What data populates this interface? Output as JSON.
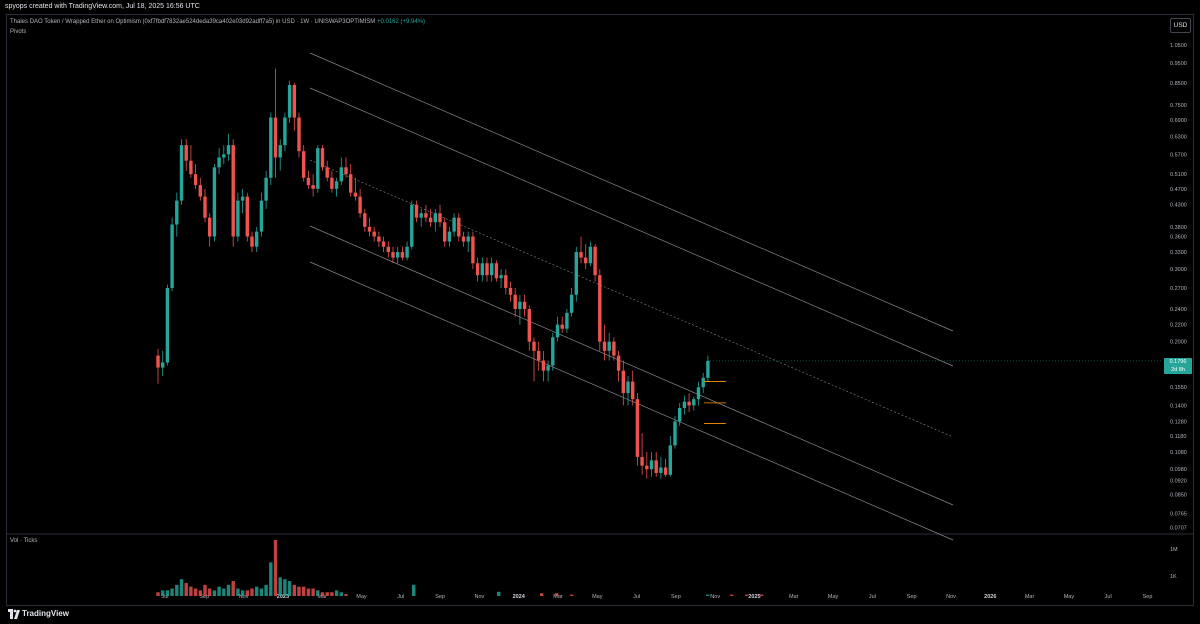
{
  "header": {
    "attribution": "spyops created with TradingView.com, Jul 18, 2025 16:56 UTC"
  },
  "legend": {
    "symbol_text": "Thales DAO Token / Wrapped Ether on Optimism (0xf7fbdf7832ae524deda39ca402e03d92adff7a5) in USD · 1W · UNISWAP3OPTIMISM",
    "change": "+0.0162 (+9.94%)",
    "indicator": "Pivots"
  },
  "currency_button": "USD",
  "volume_pane": {
    "label": "Vol · Ticks",
    "axis_labels": [
      "1M",
      "1K"
    ]
  },
  "footer": {
    "brand": "TradingView"
  },
  "price_tag": {
    "price": "0.1796",
    "countdown": "2d 8h"
  },
  "colors": {
    "up": "#26a69a",
    "down": "#ef5350",
    "channel": "#b2b5be",
    "background": "#000000",
    "pivot": "#ff9800"
  },
  "chart_data": {
    "type": "candlestick",
    "timeframe": "1W",
    "scale": "log",
    "x_axis_labels": [
      "Jul",
      "Sep",
      "Nov",
      "2023",
      "Mar",
      "May",
      "Jul",
      "Sep",
      "Nov",
      "2024",
      "Mar",
      "May",
      "Jul",
      "Sep",
      "Nov",
      "2025",
      "Mar",
      "May",
      "Jul",
      "Sep",
      "Nov",
      "2026",
      "Mar",
      "May",
      "Jul",
      "Sep"
    ],
    "y_axis_labels": [
      "1.0500",
      "0.9500",
      "0.8500",
      "0.7500",
      "0.6900",
      "0.6300",
      "0.5700",
      "0.5100",
      "0.4700",
      "0.4300",
      "0.3800",
      "0.3600",
      "0.3300",
      "0.3000",
      "0.2700",
      "0.2400",
      "0.2200",
      "0.2000",
      "0.1796",
      "0.1550",
      "0.1400",
      "0.1280",
      "0.1180",
      "0.1080",
      "0.0980",
      "0.0920",
      "0.0850",
      "0.0765",
      "0.0707"
    ],
    "y_range": [
      0.069,
      1.08
    ],
    "last_price": 0.1796,
    "candles": [
      {
        "o": 0.185,
        "h": 0.192,
        "l": 0.158,
        "c": 0.173
      },
      {
        "o": 0.173,
        "h": 0.19,
        "l": 0.165,
        "c": 0.178
      },
      {
        "o": 0.178,
        "h": 0.275,
        "l": 0.175,
        "c": 0.27
      },
      {
        "o": 0.27,
        "h": 0.4,
        "l": 0.265,
        "c": 0.385
      },
      {
        "o": 0.385,
        "h": 0.46,
        "l": 0.36,
        "c": 0.44
      },
      {
        "o": 0.44,
        "h": 0.62,
        "l": 0.43,
        "c": 0.6
      },
      {
        "o": 0.6,
        "h": 0.62,
        "l": 0.52,
        "c": 0.55
      },
      {
        "o": 0.55,
        "h": 0.6,
        "l": 0.5,
        "c": 0.51
      },
      {
        "o": 0.51,
        "h": 0.54,
        "l": 0.47,
        "c": 0.48
      },
      {
        "o": 0.48,
        "h": 0.5,
        "l": 0.44,
        "c": 0.45
      },
      {
        "o": 0.45,
        "h": 0.47,
        "l": 0.39,
        "c": 0.4
      },
      {
        "o": 0.4,
        "h": 0.41,
        "l": 0.34,
        "c": 0.36
      },
      {
        "o": 0.36,
        "h": 0.54,
        "l": 0.35,
        "c": 0.53
      },
      {
        "o": 0.53,
        "h": 0.59,
        "l": 0.51,
        "c": 0.56
      },
      {
        "o": 0.56,
        "h": 0.6,
        "l": 0.54,
        "c": 0.57
      },
      {
        "o": 0.57,
        "h": 0.64,
        "l": 0.55,
        "c": 0.6
      },
      {
        "o": 0.6,
        "h": 0.62,
        "l": 0.34,
        "c": 0.36
      },
      {
        "o": 0.36,
        "h": 0.46,
        "l": 0.35,
        "c": 0.44
      },
      {
        "o": 0.44,
        "h": 0.47,
        "l": 0.41,
        "c": 0.45
      },
      {
        "o": 0.45,
        "h": 0.46,
        "l": 0.35,
        "c": 0.36
      },
      {
        "o": 0.36,
        "h": 0.37,
        "l": 0.33,
        "c": 0.34
      },
      {
        "o": 0.34,
        "h": 0.38,
        "l": 0.33,
        "c": 0.37
      },
      {
        "o": 0.37,
        "h": 0.46,
        "l": 0.36,
        "c": 0.44
      },
      {
        "o": 0.44,
        "h": 0.52,
        "l": 0.42,
        "c": 0.5
      },
      {
        "o": 0.5,
        "h": 0.72,
        "l": 0.48,
        "c": 0.7
      },
      {
        "o": 0.7,
        "h": 0.92,
        "l": 0.5,
        "c": 0.56
      },
      {
        "o": 0.56,
        "h": 0.62,
        "l": 0.52,
        "c": 0.6
      },
      {
        "o": 0.6,
        "h": 0.72,
        "l": 0.58,
        "c": 0.7
      },
      {
        "o": 0.7,
        "h": 0.86,
        "l": 0.68,
        "c": 0.84
      },
      {
        "o": 0.84,
        "h": 0.85,
        "l": 0.65,
        "c": 0.7
      },
      {
        "o": 0.7,
        "h": 0.72,
        "l": 0.56,
        "c": 0.58
      },
      {
        "o": 0.58,
        "h": 0.6,
        "l": 0.49,
        "c": 0.5
      },
      {
        "o": 0.5,
        "h": 0.52,
        "l": 0.47,
        "c": 0.48
      },
      {
        "o": 0.48,
        "h": 0.51,
        "l": 0.45,
        "c": 0.47
      },
      {
        "o": 0.47,
        "h": 0.6,
        "l": 0.46,
        "c": 0.59
      },
      {
        "o": 0.59,
        "h": 0.6,
        "l": 0.52,
        "c": 0.53
      },
      {
        "o": 0.53,
        "h": 0.55,
        "l": 0.49,
        "c": 0.5
      },
      {
        "o": 0.5,
        "h": 0.52,
        "l": 0.46,
        "c": 0.47
      },
      {
        "o": 0.47,
        "h": 0.5,
        "l": 0.45,
        "c": 0.49
      },
      {
        "o": 0.49,
        "h": 0.56,
        "l": 0.48,
        "c": 0.53
      },
      {
        "o": 0.53,
        "h": 0.56,
        "l": 0.5,
        "c": 0.51
      },
      {
        "o": 0.51,
        "h": 0.54,
        "l": 0.45,
        "c": 0.46
      },
      {
        "o": 0.46,
        "h": 0.5,
        "l": 0.44,
        "c": 0.45
      },
      {
        "o": 0.45,
        "h": 0.47,
        "l": 0.4,
        "c": 0.41
      },
      {
        "o": 0.41,
        "h": 0.42,
        "l": 0.37,
        "c": 0.38
      },
      {
        "o": 0.38,
        "h": 0.4,
        "l": 0.36,
        "c": 0.37
      },
      {
        "o": 0.37,
        "h": 0.38,
        "l": 0.35,
        "c": 0.36
      },
      {
        "o": 0.36,
        "h": 0.37,
        "l": 0.34,
        "c": 0.35
      },
      {
        "o": 0.35,
        "h": 0.36,
        "l": 0.33,
        "c": 0.34
      },
      {
        "o": 0.34,
        "h": 0.35,
        "l": 0.32,
        "c": 0.33
      },
      {
        "o": 0.33,
        "h": 0.34,
        "l": 0.31,
        "c": 0.32
      },
      {
        "o": 0.32,
        "h": 0.34,
        "l": 0.31,
        "c": 0.33
      },
      {
        "o": 0.33,
        "h": 0.34,
        "l": 0.315,
        "c": 0.32
      },
      {
        "o": 0.32,
        "h": 0.35,
        "l": 0.315,
        "c": 0.34
      },
      {
        "o": 0.34,
        "h": 0.44,
        "l": 0.335,
        "c": 0.43
      },
      {
        "o": 0.43,
        "h": 0.44,
        "l": 0.39,
        "c": 0.4
      },
      {
        "o": 0.4,
        "h": 0.42,
        "l": 0.38,
        "c": 0.41
      },
      {
        "o": 0.41,
        "h": 0.43,
        "l": 0.39,
        "c": 0.4
      },
      {
        "o": 0.4,
        "h": 0.42,
        "l": 0.38,
        "c": 0.39
      },
      {
        "o": 0.39,
        "h": 0.42,
        "l": 0.37,
        "c": 0.41
      },
      {
        "o": 0.41,
        "h": 0.43,
        "l": 0.38,
        "c": 0.39
      },
      {
        "o": 0.39,
        "h": 0.4,
        "l": 0.34,
        "c": 0.35
      },
      {
        "o": 0.35,
        "h": 0.38,
        "l": 0.34,
        "c": 0.37
      },
      {
        "o": 0.37,
        "h": 0.41,
        "l": 0.36,
        "c": 0.4
      },
      {
        "o": 0.4,
        "h": 0.41,
        "l": 0.35,
        "c": 0.36
      },
      {
        "o": 0.36,
        "h": 0.37,
        "l": 0.34,
        "c": 0.35
      },
      {
        "o": 0.35,
        "h": 0.37,
        "l": 0.33,
        "c": 0.36
      },
      {
        "o": 0.36,
        "h": 0.37,
        "l": 0.3,
        "c": 0.31
      },
      {
        "o": 0.31,
        "h": 0.32,
        "l": 0.28,
        "c": 0.29
      },
      {
        "o": 0.29,
        "h": 0.32,
        "l": 0.28,
        "c": 0.31
      },
      {
        "o": 0.31,
        "h": 0.32,
        "l": 0.28,
        "c": 0.29
      },
      {
        "o": 0.29,
        "h": 0.32,
        "l": 0.28,
        "c": 0.31
      },
      {
        "o": 0.31,
        "h": 0.315,
        "l": 0.28,
        "c": 0.285
      },
      {
        "o": 0.285,
        "h": 0.3,
        "l": 0.27,
        "c": 0.29
      },
      {
        "o": 0.29,
        "h": 0.3,
        "l": 0.26,
        "c": 0.27
      },
      {
        "o": 0.27,
        "h": 0.28,
        "l": 0.25,
        "c": 0.26
      },
      {
        "o": 0.26,
        "h": 0.27,
        "l": 0.23,
        "c": 0.24
      },
      {
        "o": 0.24,
        "h": 0.26,
        "l": 0.22,
        "c": 0.25
      },
      {
        "o": 0.25,
        "h": 0.26,
        "l": 0.23,
        "c": 0.24
      },
      {
        "o": 0.24,
        "h": 0.245,
        "l": 0.19,
        "c": 0.2
      },
      {
        "o": 0.2,
        "h": 0.205,
        "l": 0.16,
        "c": 0.19
      },
      {
        "o": 0.19,
        "h": 0.2,
        "l": 0.17,
        "c": 0.18
      },
      {
        "o": 0.18,
        "h": 0.19,
        "l": 0.16,
        "c": 0.17
      },
      {
        "o": 0.17,
        "h": 0.18,
        "l": 0.16,
        "c": 0.175
      },
      {
        "o": 0.175,
        "h": 0.21,
        "l": 0.17,
        "c": 0.205
      },
      {
        "o": 0.205,
        "h": 0.23,
        "l": 0.2,
        "c": 0.22
      },
      {
        "o": 0.22,
        "h": 0.23,
        "l": 0.21,
        "c": 0.215
      },
      {
        "o": 0.215,
        "h": 0.24,
        "l": 0.21,
        "c": 0.235
      },
      {
        "o": 0.235,
        "h": 0.27,
        "l": 0.23,
        "c": 0.26
      },
      {
        "o": 0.26,
        "h": 0.34,
        "l": 0.25,
        "c": 0.33
      },
      {
        "o": 0.33,
        "h": 0.36,
        "l": 0.31,
        "c": 0.32
      },
      {
        "o": 0.32,
        "h": 0.345,
        "l": 0.3,
        "c": 0.31
      },
      {
        "o": 0.31,
        "h": 0.35,
        "l": 0.305,
        "c": 0.34
      },
      {
        "o": 0.34,
        "h": 0.345,
        "l": 0.28,
        "c": 0.29
      },
      {
        "o": 0.29,
        "h": 0.3,
        "l": 0.19,
        "c": 0.2
      },
      {
        "o": 0.2,
        "h": 0.22,
        "l": 0.18,
        "c": 0.19
      },
      {
        "o": 0.19,
        "h": 0.21,
        "l": 0.18,
        "c": 0.2
      },
      {
        "o": 0.2,
        "h": 0.205,
        "l": 0.18,
        "c": 0.185
      },
      {
        "o": 0.185,
        "h": 0.19,
        "l": 0.16,
        "c": 0.17
      },
      {
        "o": 0.17,
        "h": 0.18,
        "l": 0.14,
        "c": 0.15
      },
      {
        "o": 0.15,
        "h": 0.165,
        "l": 0.14,
        "c": 0.16
      },
      {
        "o": 0.16,
        "h": 0.17,
        "l": 0.14,
        "c": 0.145
      },
      {
        "o": 0.145,
        "h": 0.15,
        "l": 0.1,
        "c": 0.105
      },
      {
        "o": 0.105,
        "h": 0.12,
        "l": 0.095,
        "c": 0.1
      },
      {
        "o": 0.1,
        "h": 0.108,
        "l": 0.093,
        "c": 0.098
      },
      {
        "o": 0.098,
        "h": 0.108,
        "l": 0.094,
        "c": 0.103
      },
      {
        "o": 0.103,
        "h": 0.108,
        "l": 0.094,
        "c": 0.096
      },
      {
        "o": 0.096,
        "h": 0.105,
        "l": 0.093,
        "c": 0.099
      },
      {
        "o": 0.099,
        "h": 0.104,
        "l": 0.094,
        "c": 0.095
      },
      {
        "o": 0.095,
        "h": 0.118,
        "l": 0.094,
        "c": 0.112
      },
      {
        "o": 0.112,
        "h": 0.132,
        "l": 0.11,
        "c": 0.128
      },
      {
        "o": 0.128,
        "h": 0.142,
        "l": 0.125,
        "c": 0.138
      },
      {
        "o": 0.138,
        "h": 0.148,
        "l": 0.133,
        "c": 0.143
      },
      {
        "o": 0.143,
        "h": 0.15,
        "l": 0.135,
        "c": 0.14
      },
      {
        "o": 0.14,
        "h": 0.147,
        "l": 0.136,
        "c": 0.145
      },
      {
        "o": 0.145,
        "h": 0.16,
        "l": 0.14,
        "c": 0.155
      },
      {
        "o": 0.155,
        "h": 0.168,
        "l": 0.15,
        "c": 0.1634
      },
      {
        "o": 0.1634,
        "h": 0.185,
        "l": 0.16,
        "c": 0.1796
      }
    ],
    "volume": [
      2,
      3,
      3,
      4,
      6,
      9,
      7,
      5,
      4,
      3,
      6,
      4,
      3,
      5,
      4,
      6,
      8,
      4,
      3,
      3,
      4,
      5,
      4,
      6,
      18,
      30,
      10,
      9,
      8,
      6,
      5,
      5,
      4,
      4,
      3,
      2,
      2,
      2,
      3,
      2,
      1,
      0,
      0,
      0,
      0,
      0,
      0,
      0,
      0,
      0,
      0,
      0,
      0,
      0,
      0,
      0,
      0,
      0,
      0,
      0,
      0,
      0,
      0,
      0,
      0,
      0,
      0,
      0,
      0,
      0,
      0,
      0,
      0,
      0,
      0,
      0,
      0,
      0,
      0,
      0,
      0,
      0,
      0,
      0,
      0,
      0,
      0,
      0,
      0,
      0,
      0,
      0,
      0,
      0,
      0,
      0,
      0,
      0,
      0,
      0,
      0,
      0,
      0,
      0,
      0,
      0,
      0,
      0,
      0,
      0,
      0,
      0,
      0,
      0,
      0,
      0,
      0,
      0,
      0,
      0,
      0,
      0
    ]
  }
}
